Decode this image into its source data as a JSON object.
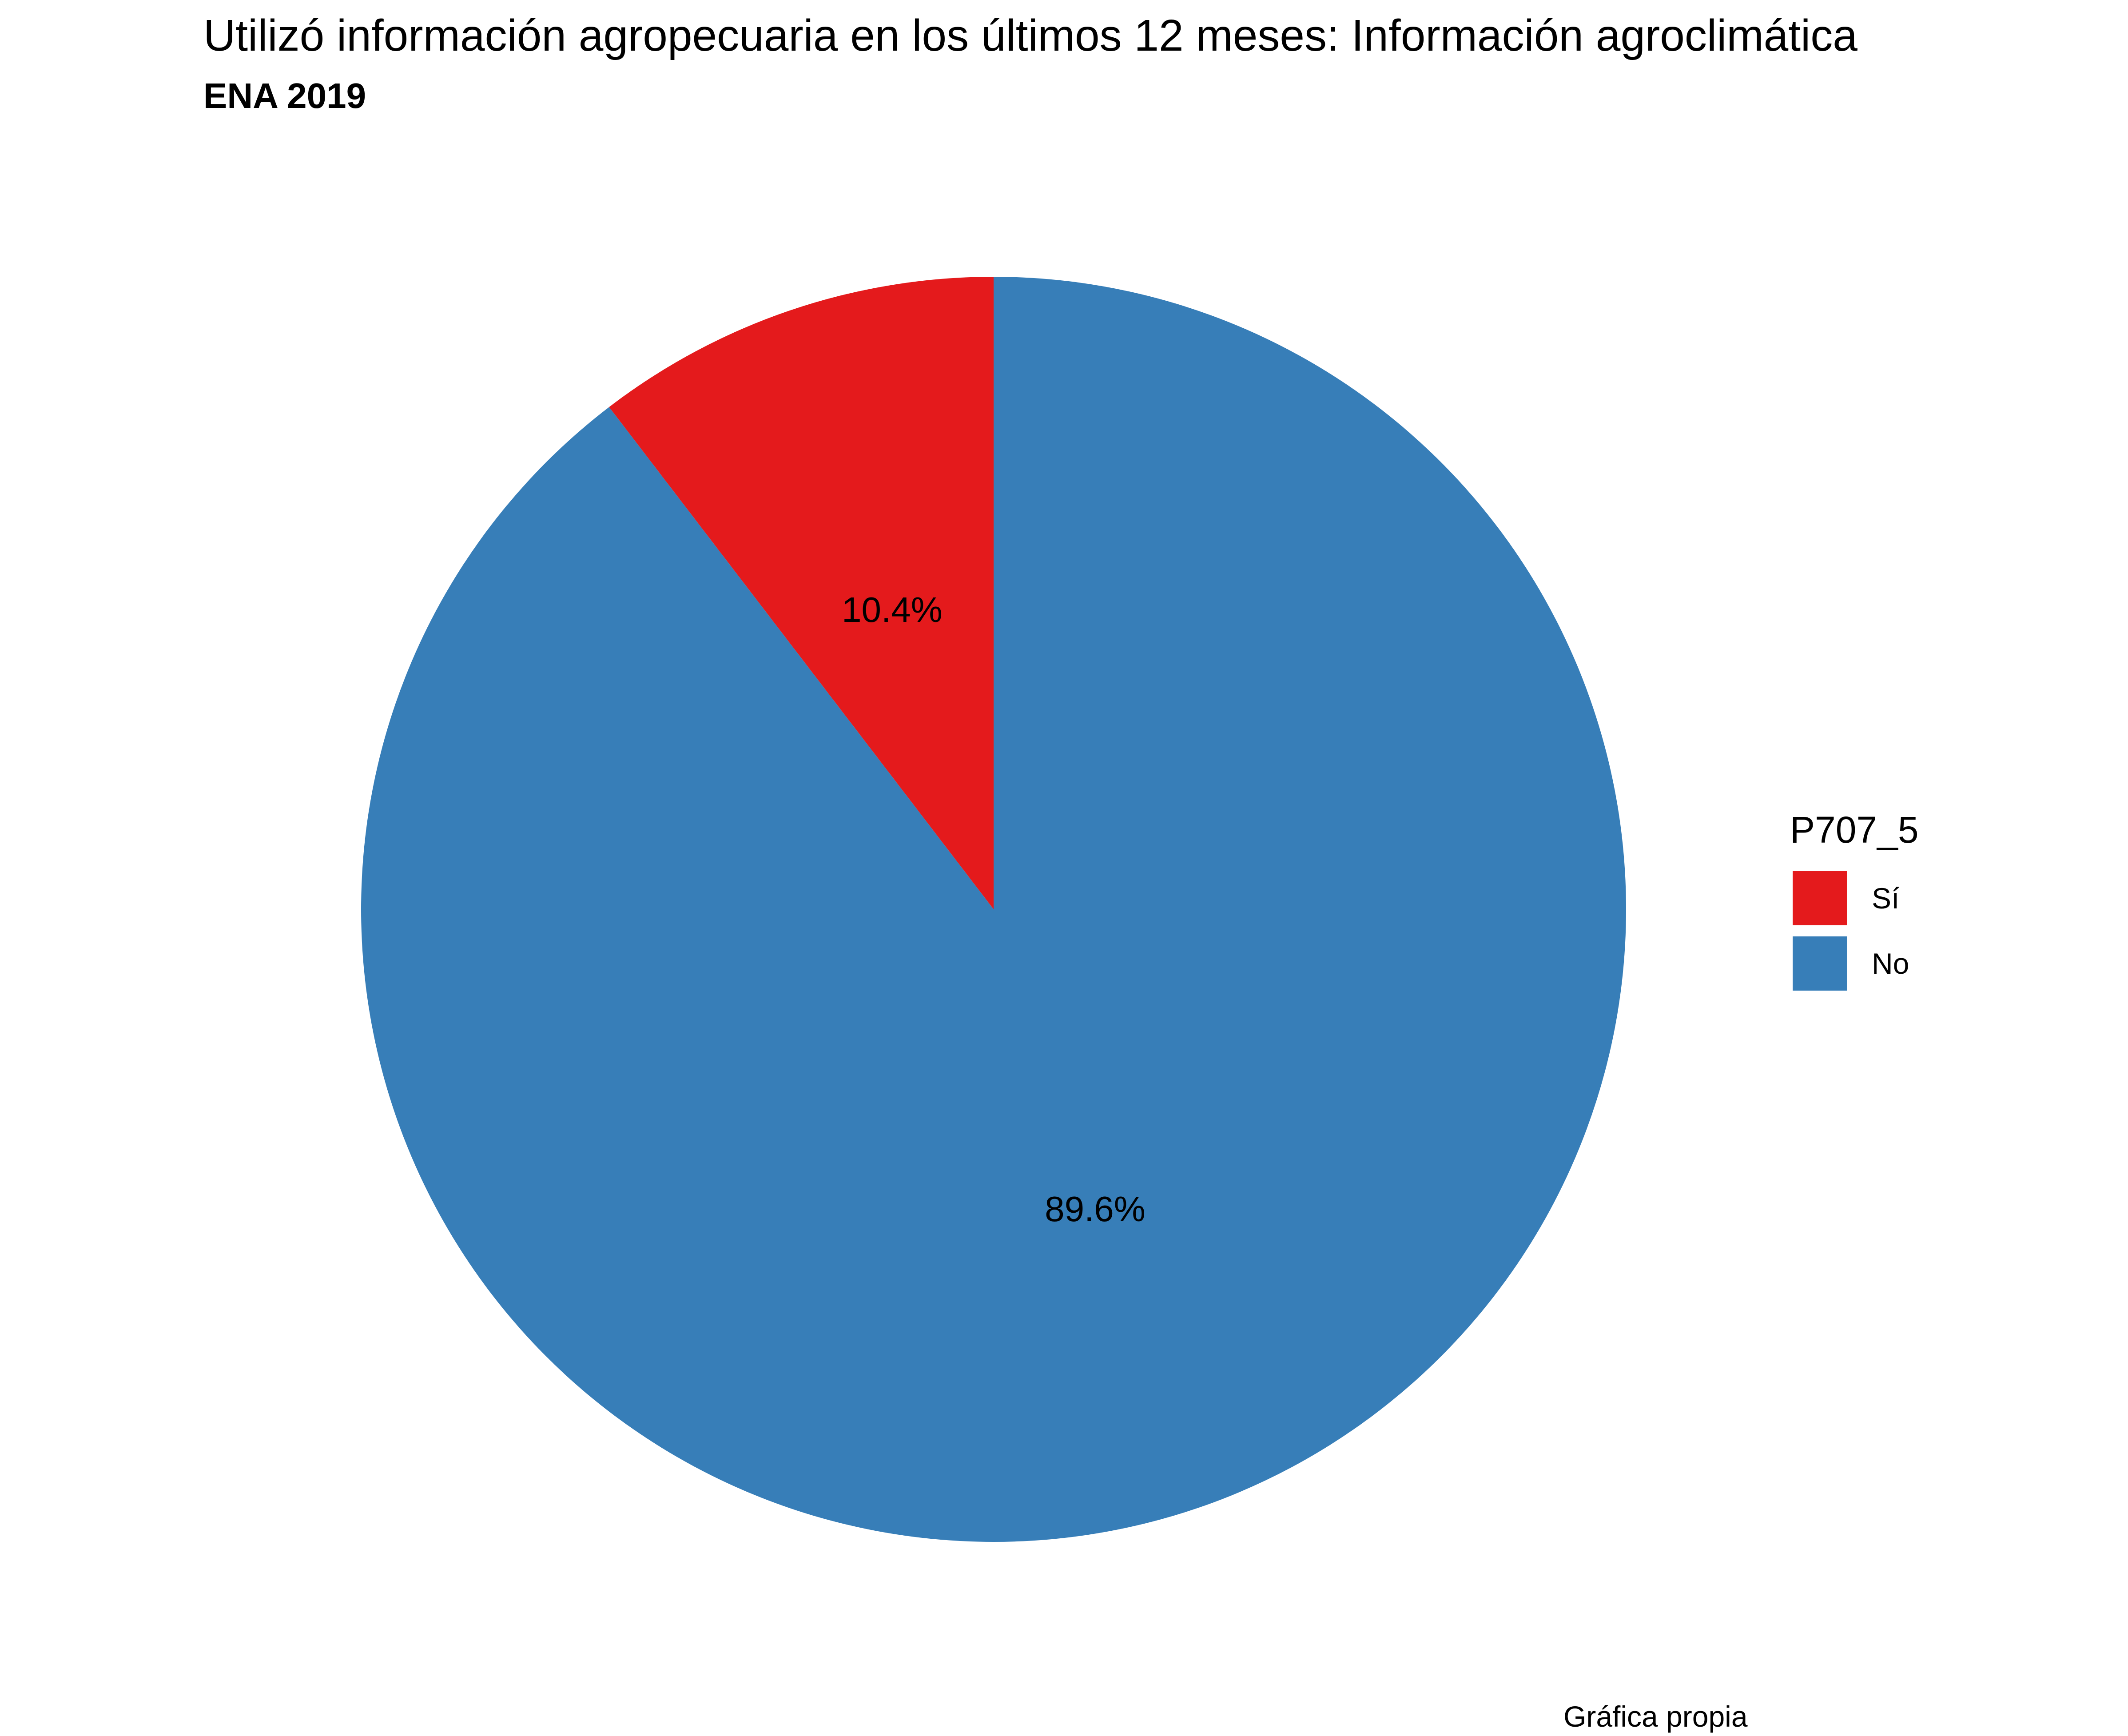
{
  "title": "Utilizó información agropecuaria en los últimos 12 meses: Información agroclimática",
  "subtitle": "ENA 2019",
  "caption": "Gráfica propia",
  "colors": {
    "Sí": "#e41a1c",
    "No": "#377eb8"
  },
  "legend": {
    "title": "P707_5",
    "items": [
      {
        "label": "Sí",
        "color": "#e41a1c"
      },
      {
        "label": "No",
        "color": "#377eb8"
      }
    ]
  },
  "chart_data": {
    "type": "pie",
    "title": "Utilizó información agropecuaria en los últimos 12 meses: Información agroclimática",
    "subtitle": "ENA 2019",
    "legend_title": "P707_5",
    "legend_position": "right",
    "categories": [
      "Sí",
      "No"
    ],
    "values": [
      10.4,
      89.6
    ],
    "labels": [
      "10.4%",
      "89.6%"
    ],
    "unit": "%",
    "start": "top",
    "direction": "counterclockwise"
  }
}
